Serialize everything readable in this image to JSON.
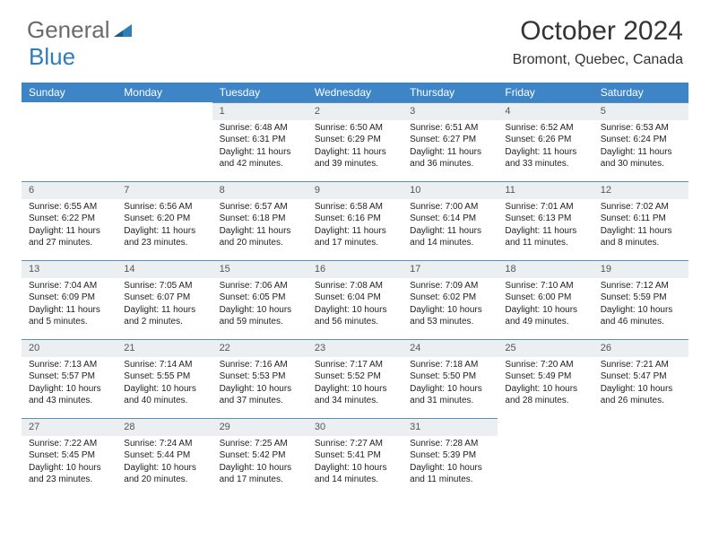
{
  "logo": {
    "word1": "General",
    "word2": "Blue"
  },
  "title": "October 2024",
  "subtitle": "Bromont, Quebec, Canada",
  "colors": {
    "header_bg": "#3d85c6",
    "header_text": "#ffffff",
    "daynum_bg": "#eceff1",
    "daynum_border": "#5a8fb7",
    "logo_gray": "#6b6b6b",
    "logo_blue": "#2f7eb8",
    "body_text": "#222222",
    "background": "#ffffff"
  },
  "typography": {
    "title_fontsize": 30,
    "subtitle_fontsize": 16,
    "logo_fontsize": 26,
    "dayhead_fontsize": 12,
    "daynum_fontsize": 11,
    "cell_fontsize": 10,
    "font_family": "Arial"
  },
  "day_headers": [
    "Sunday",
    "Monday",
    "Tuesday",
    "Wednesday",
    "Thursday",
    "Friday",
    "Saturday"
  ],
  "weeks": [
    [
      {
        "n": "",
        "lines": []
      },
      {
        "n": "",
        "lines": []
      },
      {
        "n": "1",
        "lines": [
          "Sunrise: 6:48 AM",
          "Sunset: 6:31 PM",
          "Daylight: 11 hours",
          "and 42 minutes."
        ]
      },
      {
        "n": "2",
        "lines": [
          "Sunrise: 6:50 AM",
          "Sunset: 6:29 PM",
          "Daylight: 11 hours",
          "and 39 minutes."
        ]
      },
      {
        "n": "3",
        "lines": [
          "Sunrise: 6:51 AM",
          "Sunset: 6:27 PM",
          "Daylight: 11 hours",
          "and 36 minutes."
        ]
      },
      {
        "n": "4",
        "lines": [
          "Sunrise: 6:52 AM",
          "Sunset: 6:26 PM",
          "Daylight: 11 hours",
          "and 33 minutes."
        ]
      },
      {
        "n": "5",
        "lines": [
          "Sunrise: 6:53 AM",
          "Sunset: 6:24 PM",
          "Daylight: 11 hours",
          "and 30 minutes."
        ]
      }
    ],
    [
      {
        "n": "6",
        "lines": [
          "Sunrise: 6:55 AM",
          "Sunset: 6:22 PM",
          "Daylight: 11 hours",
          "and 27 minutes."
        ]
      },
      {
        "n": "7",
        "lines": [
          "Sunrise: 6:56 AM",
          "Sunset: 6:20 PM",
          "Daylight: 11 hours",
          "and 23 minutes."
        ]
      },
      {
        "n": "8",
        "lines": [
          "Sunrise: 6:57 AM",
          "Sunset: 6:18 PM",
          "Daylight: 11 hours",
          "and 20 minutes."
        ]
      },
      {
        "n": "9",
        "lines": [
          "Sunrise: 6:58 AM",
          "Sunset: 6:16 PM",
          "Daylight: 11 hours",
          "and 17 minutes."
        ]
      },
      {
        "n": "10",
        "lines": [
          "Sunrise: 7:00 AM",
          "Sunset: 6:14 PM",
          "Daylight: 11 hours",
          "and 14 minutes."
        ]
      },
      {
        "n": "11",
        "lines": [
          "Sunrise: 7:01 AM",
          "Sunset: 6:13 PM",
          "Daylight: 11 hours",
          "and 11 minutes."
        ]
      },
      {
        "n": "12",
        "lines": [
          "Sunrise: 7:02 AM",
          "Sunset: 6:11 PM",
          "Daylight: 11 hours",
          "and 8 minutes."
        ]
      }
    ],
    [
      {
        "n": "13",
        "lines": [
          "Sunrise: 7:04 AM",
          "Sunset: 6:09 PM",
          "Daylight: 11 hours",
          "and 5 minutes."
        ]
      },
      {
        "n": "14",
        "lines": [
          "Sunrise: 7:05 AM",
          "Sunset: 6:07 PM",
          "Daylight: 11 hours",
          "and 2 minutes."
        ]
      },
      {
        "n": "15",
        "lines": [
          "Sunrise: 7:06 AM",
          "Sunset: 6:05 PM",
          "Daylight: 10 hours",
          "and 59 minutes."
        ]
      },
      {
        "n": "16",
        "lines": [
          "Sunrise: 7:08 AM",
          "Sunset: 6:04 PM",
          "Daylight: 10 hours",
          "and 56 minutes."
        ]
      },
      {
        "n": "17",
        "lines": [
          "Sunrise: 7:09 AM",
          "Sunset: 6:02 PM",
          "Daylight: 10 hours",
          "and 53 minutes."
        ]
      },
      {
        "n": "18",
        "lines": [
          "Sunrise: 7:10 AM",
          "Sunset: 6:00 PM",
          "Daylight: 10 hours",
          "and 49 minutes."
        ]
      },
      {
        "n": "19",
        "lines": [
          "Sunrise: 7:12 AM",
          "Sunset: 5:59 PM",
          "Daylight: 10 hours",
          "and 46 minutes."
        ]
      }
    ],
    [
      {
        "n": "20",
        "lines": [
          "Sunrise: 7:13 AM",
          "Sunset: 5:57 PM",
          "Daylight: 10 hours",
          "and 43 minutes."
        ]
      },
      {
        "n": "21",
        "lines": [
          "Sunrise: 7:14 AM",
          "Sunset: 5:55 PM",
          "Daylight: 10 hours",
          "and 40 minutes."
        ]
      },
      {
        "n": "22",
        "lines": [
          "Sunrise: 7:16 AM",
          "Sunset: 5:53 PM",
          "Daylight: 10 hours",
          "and 37 minutes."
        ]
      },
      {
        "n": "23",
        "lines": [
          "Sunrise: 7:17 AM",
          "Sunset: 5:52 PM",
          "Daylight: 10 hours",
          "and 34 minutes."
        ]
      },
      {
        "n": "24",
        "lines": [
          "Sunrise: 7:18 AM",
          "Sunset: 5:50 PM",
          "Daylight: 10 hours",
          "and 31 minutes."
        ]
      },
      {
        "n": "25",
        "lines": [
          "Sunrise: 7:20 AM",
          "Sunset: 5:49 PM",
          "Daylight: 10 hours",
          "and 28 minutes."
        ]
      },
      {
        "n": "26",
        "lines": [
          "Sunrise: 7:21 AM",
          "Sunset: 5:47 PM",
          "Daylight: 10 hours",
          "and 26 minutes."
        ]
      }
    ],
    [
      {
        "n": "27",
        "lines": [
          "Sunrise: 7:22 AM",
          "Sunset: 5:45 PM",
          "Daylight: 10 hours",
          "and 23 minutes."
        ]
      },
      {
        "n": "28",
        "lines": [
          "Sunrise: 7:24 AM",
          "Sunset: 5:44 PM",
          "Daylight: 10 hours",
          "and 20 minutes."
        ]
      },
      {
        "n": "29",
        "lines": [
          "Sunrise: 7:25 AM",
          "Sunset: 5:42 PM",
          "Daylight: 10 hours",
          "and 17 minutes."
        ]
      },
      {
        "n": "30",
        "lines": [
          "Sunrise: 7:27 AM",
          "Sunset: 5:41 PM",
          "Daylight: 10 hours",
          "and 14 minutes."
        ]
      },
      {
        "n": "31",
        "lines": [
          "Sunrise: 7:28 AM",
          "Sunset: 5:39 PM",
          "Daylight: 10 hours",
          "and 11 minutes."
        ]
      },
      {
        "n": "",
        "lines": []
      },
      {
        "n": "",
        "lines": []
      }
    ]
  ]
}
